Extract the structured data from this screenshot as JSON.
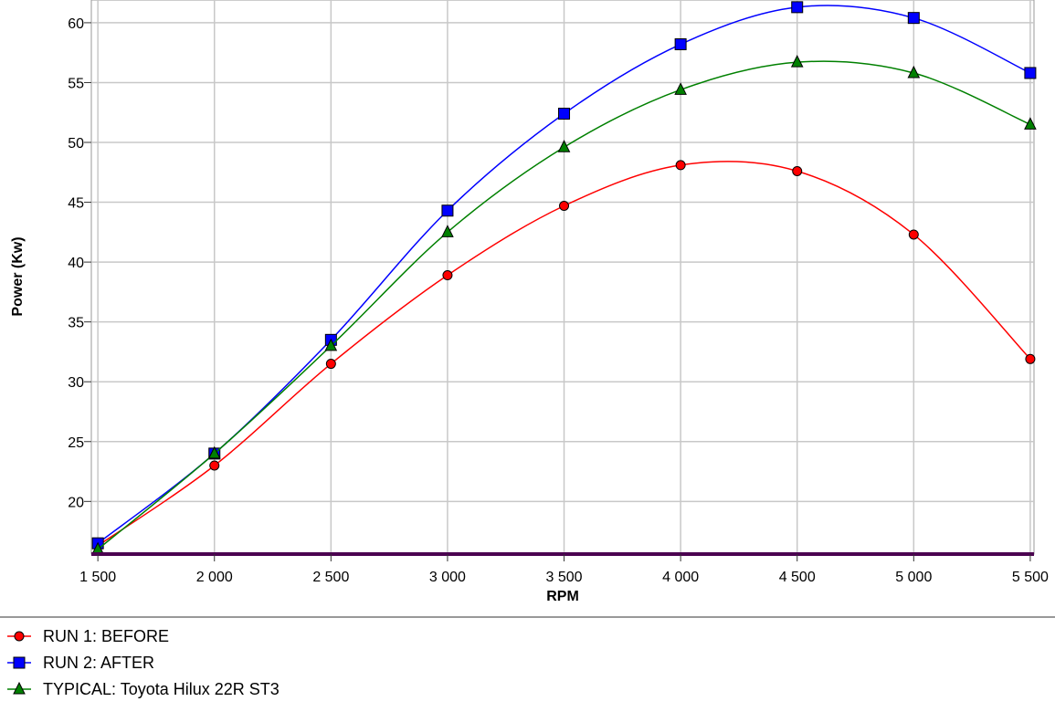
{
  "chart_data": {
    "type": "line",
    "x_label": "RPM",
    "y_label": "Power (Kw)",
    "x": [
      1500,
      2000,
      2500,
      3000,
      3500,
      4000,
      4500,
      5000,
      5500
    ],
    "series": [
      {
        "name": "RUN 1: BEFORE",
        "color": "#ff0000",
        "marker": "circle",
        "values": [
          16.3,
          23.0,
          31.5,
          38.9,
          44.7,
          48.1,
          47.6,
          42.3,
          31.9
        ]
      },
      {
        "name": "RUN 2: AFTER",
        "color": "#0000ff",
        "marker": "square",
        "values": [
          16.5,
          24.0,
          33.5,
          44.3,
          52.4,
          58.2,
          61.3,
          60.4,
          55.8
        ]
      },
      {
        "name": "TYPICAL: Toyota Hilux 22R ST3",
        "color": "#008000",
        "marker": "triangle",
        "values": [
          16.0,
          24.0,
          33.0,
          42.5,
          49.6,
          54.4,
          56.7,
          55.8,
          51.5
        ]
      }
    ],
    "xlim": [
      1472,
      5516
    ],
    "ylim": [
      15.6,
      61.9
    ],
    "xticks": [
      {
        "value": 1500,
        "label": "1 500"
      },
      {
        "value": 2000,
        "label": "2 000"
      },
      {
        "value": 2500,
        "label": "2 500"
      },
      {
        "value": 3000,
        "label": "3 000"
      },
      {
        "value": 3500,
        "label": "3 500"
      },
      {
        "value": 4000,
        "label": "4 000"
      },
      {
        "value": 4500,
        "label": "4 500"
      },
      {
        "value": 5000,
        "label": "5 000"
      },
      {
        "value": 5500,
        "label": "5 500"
      }
    ],
    "yticks": [
      20,
      25,
      30,
      35,
      40,
      45,
      50,
      55,
      60
    ],
    "grid": true,
    "legend": "bottom"
  }
}
